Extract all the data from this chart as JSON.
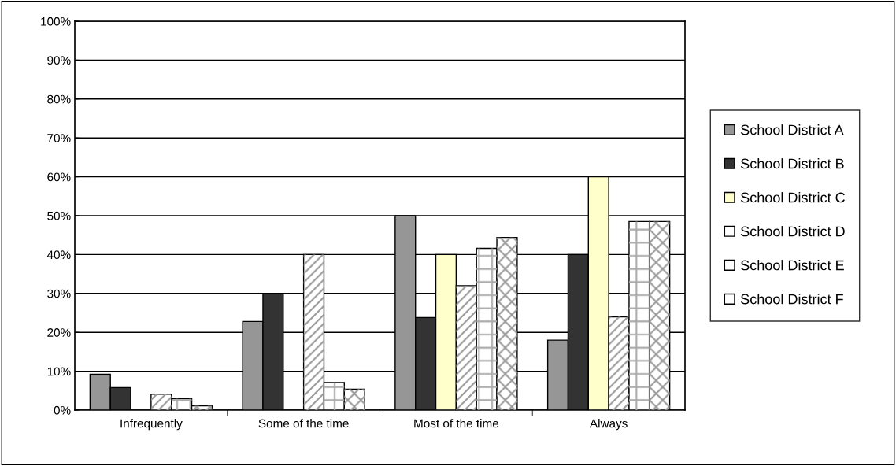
{
  "chart_data": {
    "type": "bar",
    "categories": [
      "Infrequently",
      "Some of the time",
      "Most of the time",
      "Always"
    ],
    "series": [
      {
        "name": "School District A",
        "color": "#969696",
        "values": [
          9.2,
          22.8,
          50,
          18
        ]
      },
      {
        "name": "School District B",
        "color": "#333333",
        "values": [
          5.8,
          30,
          23.8,
          40
        ]
      },
      {
        "name": "School District C",
        "color": "#ffffcc",
        "values": [
          null,
          null,
          40,
          60
        ]
      },
      {
        "name": "School District D",
        "color": "#ffffff",
        "values": [
          4.1,
          40,
          32,
          24
        ]
      },
      {
        "name": "School District E",
        "color": "#ffffff",
        "values": [
          2.9,
          7.1,
          41.6,
          48.5
        ]
      },
      {
        "name": "School District F",
        "color": "#ffffff",
        "values": [
          1.1,
          5.4,
          44.4,
          48.5
        ]
      }
    ],
    "ylim": [
      0,
      100
    ],
    "yticks": [
      {
        "value": 0,
        "label": "0%"
      },
      {
        "value": 10,
        "label": "10%"
      },
      {
        "value": 20,
        "label": "20%"
      },
      {
        "value": 30,
        "label": "30%"
      },
      {
        "value": 40,
        "label": "40%"
      },
      {
        "value": 50,
        "label": "50%"
      },
      {
        "value": 60,
        "label": "60%"
      },
      {
        "value": 70,
        "label": "70%"
      },
      {
        "value": 80,
        "label": "80%"
      },
      {
        "value": 90,
        "label": "90%"
      },
      {
        "value": 100,
        "label": "100%"
      }
    ],
    "grid": "y",
    "legend": "right"
  }
}
